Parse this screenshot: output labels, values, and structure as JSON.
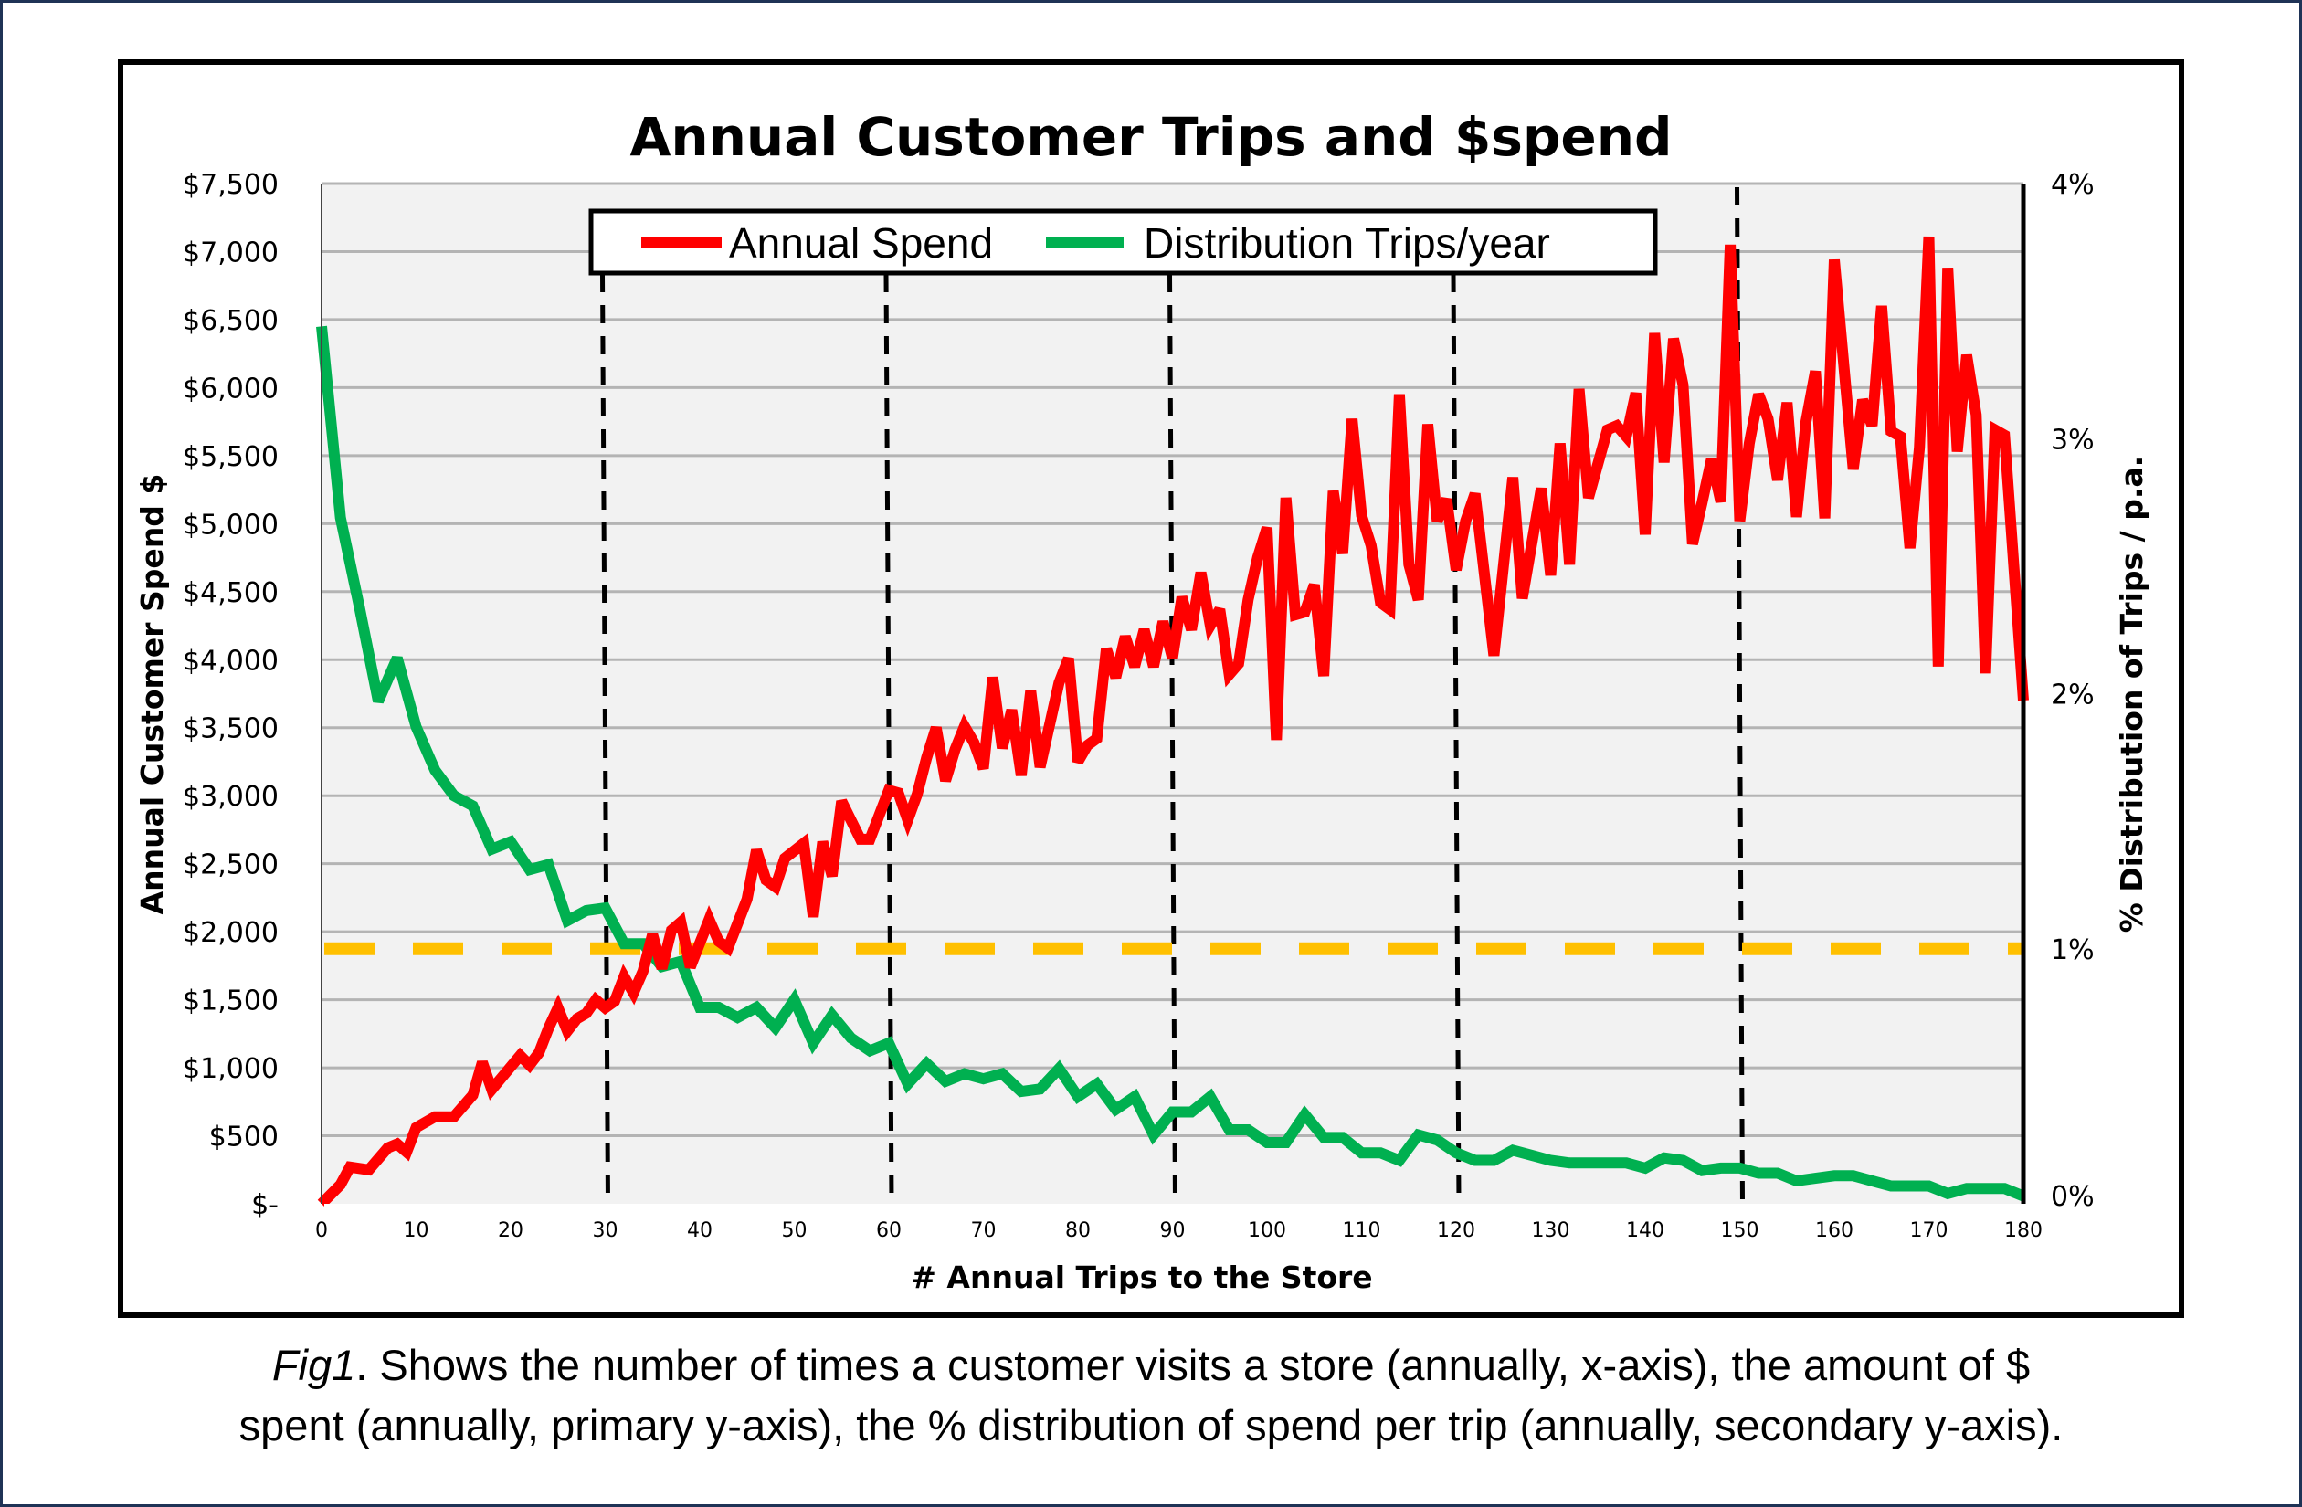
{
  "chart_data": {
    "type": "line",
    "title": "Annual Customer Trips and $spend",
    "xlabel": "# Annual Trips to the Store",
    "ylabel": "Annual Customer Spend $",
    "y2label": "% Distribution of Trips / p.a.",
    "xlim": [
      0,
      180
    ],
    "ylim": [
      0,
      7500
    ],
    "y2lim": [
      0,
      4
    ],
    "grid": true,
    "legend_position": "top-center",
    "x_ticks": [
      "0",
      "10",
      "20",
      "30",
      "40",
      "50",
      "60",
      "70",
      "80",
      "90",
      "100",
      "110",
      "120",
      "130",
      "140",
      "150",
      "160",
      "170",
      "180"
    ],
    "y_ticks": [
      "$-",
      "$500",
      "$1,000",
      "$1,500",
      "$2,000",
      "$2,500",
      "$3,000",
      "$3,500",
      "$4,000",
      "$4,500",
      "$5,000",
      "$5,500",
      "$6,000",
      "$6,500",
      "$7,000",
      "$7,500"
    ],
    "y2_ticks": [
      "0%",
      "1%",
      "2%",
      "3%",
      "4%"
    ],
    "reference_lines": {
      "vertical_x": [
        30,
        60,
        90,
        120,
        150
      ],
      "horizontal_y2": 1
    },
    "series": [
      {
        "name": "Annual Spend",
        "axis": "primary",
        "color": "#ff0000",
        "x": [
          0,
          2,
          3,
          5,
          7,
          8,
          9,
          10,
          12,
          14,
          16,
          17,
          18,
          21,
          22,
          23,
          24,
          25,
          26,
          27,
          28,
          29,
          30,
          31,
          32,
          33,
          34,
          35,
          36,
          37,
          38,
          39,
          41,
          42,
          43,
          45,
          46,
          47,
          48,
          49,
          51,
          52,
          53,
          54,
          55,
          57,
          58,
          60,
          61,
          62,
          63,
          64,
          65,
          66,
          67,
          68,
          69,
          70,
          71,
          72,
          73,
          74,
          75,
          76,
          78,
          79,
          80,
          81,
          82,
          83,
          84,
          85,
          86,
          87,
          88,
          89,
          90,
          91,
          92,
          93,
          94,
          95,
          96,
          97,
          98,
          99,
          100,
          101,
          102,
          103,
          104,
          105,
          106,
          107,
          108,
          109,
          110,
          111,
          112,
          113,
          114,
          115,
          116,
          117,
          118,
          119,
          120,
          121,
          122,
          124,
          126,
          127,
          129,
          130,
          131,
          132,
          133,
          134,
          136,
          137,
          138,
          139,
          140,
          141,
          142,
          143,
          144,
          145,
          146,
          147,
          148,
          149,
          150,
          151,
          152,
          153,
          154,
          155,
          156,
          157,
          158,
          159,
          160,
          162,
          163,
          164,
          165,
          166,
          167,
          168,
          169,
          170,
          171,
          172,
          173,
          174,
          175,
          176,
          177,
          178,
          180
        ],
        "y": [
          0,
          140,
          270,
          250,
          410,
          440,
          380,
          560,
          640,
          640,
          800,
          1040,
          840,
          1090,
          1020,
          1110,
          1290,
          1440,
          1270,
          1360,
          1400,
          1500,
          1440,
          1490,
          1670,
          1550,
          1710,
          1980,
          1730,
          2010,
          2070,
          1740,
          2090,
          1930,
          1880,
          2240,
          2600,
          2380,
          2330,
          2540,
          2650,
          2110,
          2660,
          2410,
          2960,
          2680,
          2680,
          3040,
          3020,
          2820,
          3010,
          3280,
          3500,
          3110,
          3340,
          3510,
          3390,
          3200,
          3870,
          3350,
          3630,
          3150,
          3770,
          3210,
          3830,
          4010,
          3250,
          3370,
          3420,
          4080,
          3870,
          4170,
          3950,
          4220,
          3950,
          4280,
          4010,
          4460,
          4220,
          4640,
          4250,
          4370,
          3890,
          3970,
          4440,
          4750,
          4970,
          3410,
          5190,
          4330,
          4350,
          4550,
          3880,
          5240,
          4780,
          5770,
          5060,
          4840,
          4420,
          4370,
          5950,
          4700,
          4440,
          5730,
          5020,
          5180,
          4660,
          5020,
          5220,
          4030,
          5340,
          4450,
          5260,
          4620,
          5590,
          4700,
          5990,
          5190,
          5690,
          5720,
          5640,
          5960,
          4920,
          6400,
          5450,
          6360,
          6020,
          4850,
          5150,
          5470,
          5160,
          7050,
          5020,
          5590,
          5950,
          5770,
          5320,
          5890,
          5050,
          5750,
          6120,
          5040,
          6940,
          5400,
          5910,
          5720,
          6600,
          5680,
          5640,
          4820,
          5560,
          7110,
          3950,
          6880,
          5530,
          6240,
          5800,
          3900,
          5690,
          5650,
          3700
        ]
      },
      {
        "name": "Distribution Trips/year",
        "axis": "secondary",
        "color": "#00b050",
        "x": [
          0,
          2,
          4,
          6,
          8,
          10,
          12,
          14,
          16,
          18,
          20,
          22,
          24,
          26,
          28,
          30,
          32,
          34,
          36,
          38,
          40,
          42,
          44,
          46,
          48,
          50,
          52,
          54,
          56,
          58,
          60,
          62,
          64,
          66,
          68,
          70,
          72,
          74,
          76,
          78,
          80,
          82,
          84,
          86,
          88,
          90,
          92,
          94,
          96,
          98,
          100,
          102,
          104,
          106,
          108,
          110,
          112,
          114,
          116,
          118,
          120,
          122,
          124,
          126,
          128,
          130,
          132,
          134,
          136,
          138,
          140,
          142,
          144,
          146,
          148,
          150,
          152,
          154,
          156,
          158,
          160,
          162,
          164,
          166,
          168,
          170,
          172,
          174,
          176,
          178,
          180
        ],
        "y": [
          3.44,
          2.69,
          2.34,
          1.97,
          2.14,
          1.87,
          1.7,
          1.6,
          1.56,
          1.39,
          1.42,
          1.31,
          1.33,
          1.11,
          1.15,
          1.16,
          1.02,
          1.02,
          0.93,
          0.95,
          0.77,
          0.77,
          0.73,
          0.77,
          0.69,
          0.8,
          0.63,
          0.74,
          0.65,
          0.6,
          0.63,
          0.47,
          0.55,
          0.48,
          0.51,
          0.49,
          0.51,
          0.44,
          0.45,
          0.53,
          0.42,
          0.47,
          0.37,
          0.42,
          0.27,
          0.36,
          0.36,
          0.42,
          0.29,
          0.29,
          0.24,
          0.24,
          0.35,
          0.26,
          0.26,
          0.2,
          0.2,
          0.17,
          0.27,
          0.25,
          0.2,
          0.17,
          0.17,
          0.21,
          0.19,
          0.17,
          0.16,
          0.16,
          0.16,
          0.16,
          0.14,
          0.18,
          0.17,
          0.13,
          0.14,
          0.14,
          0.12,
          0.12,
          0.09,
          0.1,
          0.11,
          0.11,
          0.09,
          0.07,
          0.07,
          0.07,
          0.04,
          0.06,
          0.06,
          0.06,
          0.03
        ]
      }
    ],
    "reference_line_colors": {
      "vertical": "#000000",
      "horizontal": "#ffc000"
    },
    "plot_background": "#f2f2f2"
  },
  "caption": {
    "label": "Fig1",
    "line1": ". Shows the number of times a customer visits a store (annually, x-axis), the amount of $",
    "line2": "spent (annually, primary y-axis), the % distribution of spend per trip (annually, secondary y-axis)."
  }
}
